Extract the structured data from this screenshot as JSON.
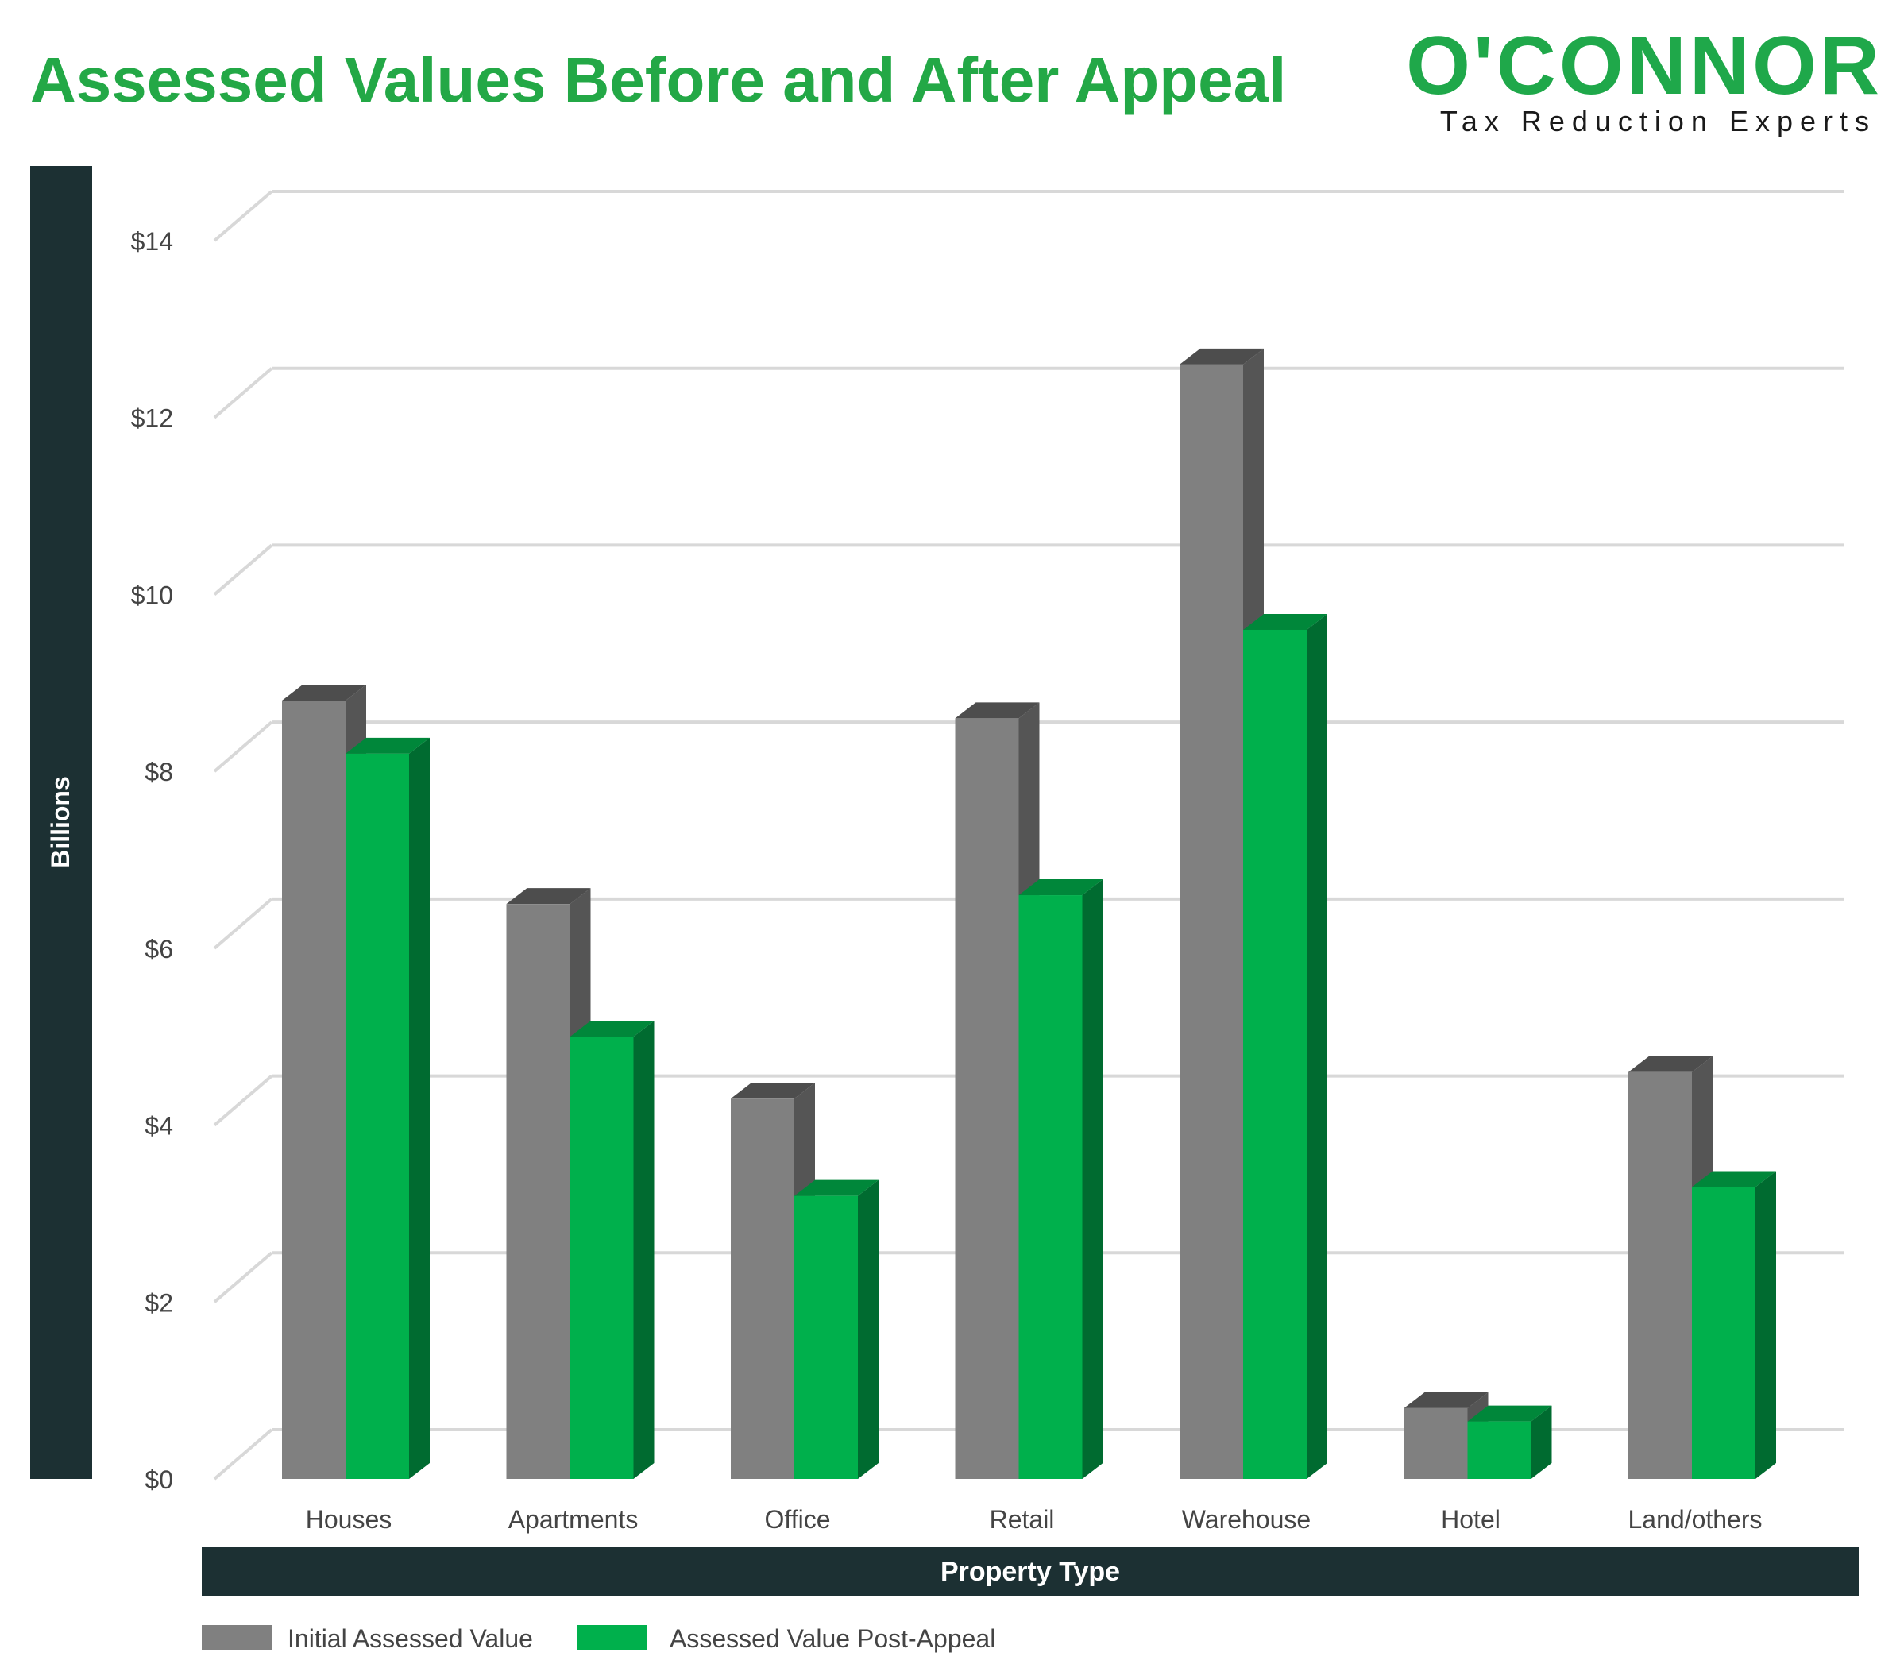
{
  "colors": {
    "title": "#23a846",
    "logo_green": "#1fa84a",
    "logo_text": "#1a1a1a",
    "axis_text": "#444444",
    "bar_gray": "#808080",
    "bar_gray_dark": "#555555",
    "bar_gray_top": "#4d4d4d",
    "bar_green": "#00b04c",
    "bar_green_dark": "#006b30",
    "bar_green_top": "#00873a",
    "grid": "#d8d8d8",
    "dark_band": "#1c3033",
    "band_text": "#ffffff"
  },
  "logo": {
    "name": "O'CONNOR",
    "tagline": "Tax Reduction Experts"
  },
  "chart_data": {
    "type": "bar",
    "title": "Assessed Values Before and After Appeal",
    "xlabel": "Property Type",
    "ylabel": "Billions",
    "categories": [
      "Houses",
      "Apartments",
      "Office",
      "Retail",
      "Warehouse",
      "Hotel",
      "Land/others"
    ],
    "series": [
      {
        "name": "Initial Assessed Value",
        "color_key": "bar_gray",
        "values": [
          8.8,
          6.5,
          4.3,
          8.6,
          12.6,
          0.8,
          4.6
        ]
      },
      {
        "name": "Assessed Value Post-Appeal",
        "color_key": "bar_green",
        "values": [
          8.2,
          5.0,
          3.2,
          6.6,
          9.6,
          0.65,
          3.3
        ]
      }
    ],
    "y_ticks": [
      "$0",
      "$2",
      "$4",
      "$6",
      "$8",
      "$10",
      "$12",
      "$14"
    ],
    "ylim": [
      0,
      14
    ],
    "grid": true,
    "three_d": true,
    "legend_position": "bottom-left"
  }
}
